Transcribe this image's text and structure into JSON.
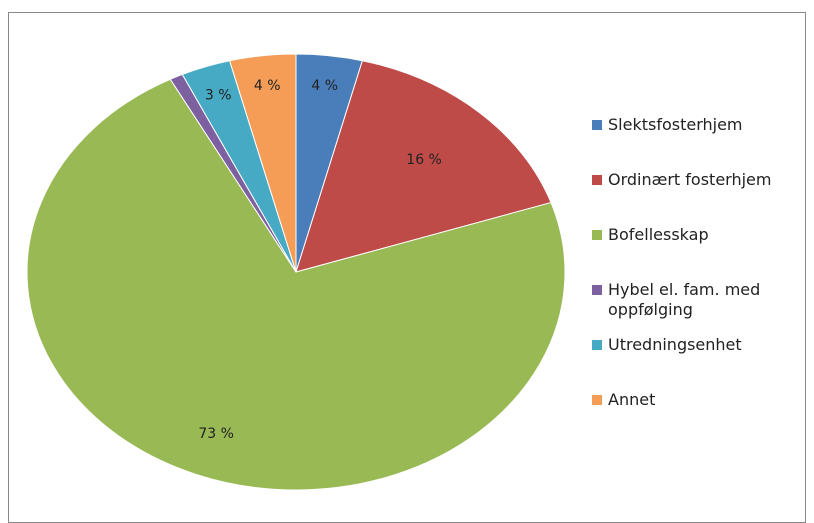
{
  "chart_data": {
    "type": "pie",
    "categories": [
      "Slektsfosterhjem",
      "Ordinært fosterhjem",
      "Bofellesskap",
      "Hybel el. fam. med oppfølging",
      "Utredningsenhet",
      "Annet"
    ],
    "values": [
      4,
      16,
      73,
      0.8,
      3,
      4
    ],
    "value_labels": [
      "4 %",
      "16 %",
      "73 %",
      null,
      "3 %",
      "4 %"
    ],
    "colors": [
      "#4a7ebb",
      "#be4b48",
      "#98b954",
      "#7d60a0",
      "#46aac5",
      "#f59d56"
    ],
    "legend": "right"
  }
}
